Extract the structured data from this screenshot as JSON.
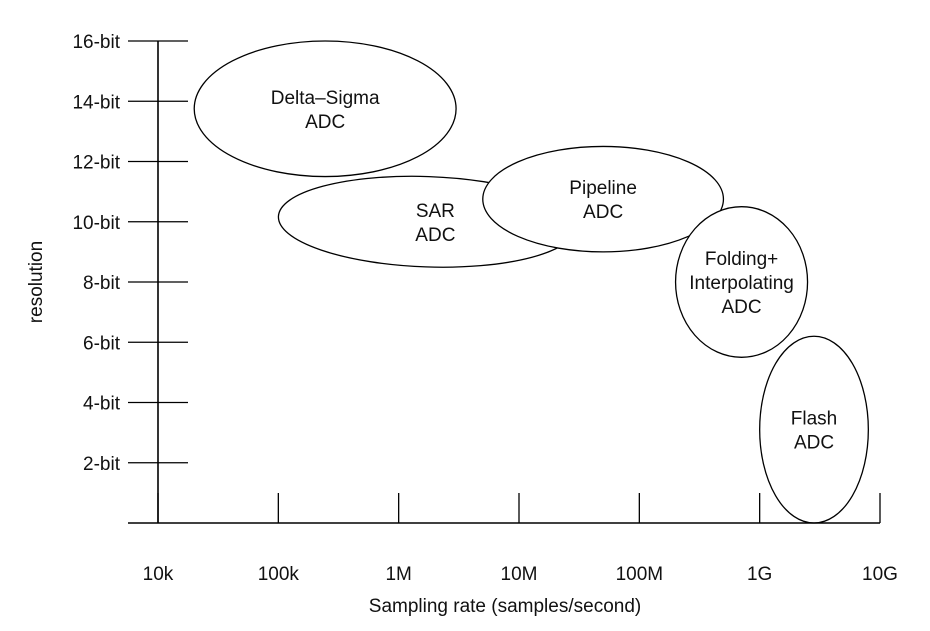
{
  "chart_data": {
    "type": "scatter",
    "title": "",
    "xlabel": "Sampling rate (samples/second)",
    "ylabel": "resolution",
    "x_scale": "log",
    "x_ticks": [
      "10k",
      "100k",
      "1M",
      "10M",
      "100M",
      "1G",
      "10G"
    ],
    "x_tick_values": [
      10000,
      100000,
      1000000,
      10000000,
      100000000,
      1000000000,
      10000000000
    ],
    "y_ticks": [
      "2-bit",
      "4-bit",
      "6-bit",
      "8-bit",
      "10-bit",
      "12-bit",
      "14-bit",
      "16-bit"
    ],
    "y_tick_values": [
      2,
      4,
      6,
      8,
      10,
      12,
      14,
      16
    ],
    "xlim": [
      10000,
      10000000000
    ],
    "ylim": [
      0,
      16
    ],
    "grid": false,
    "regions": [
      {
        "name": "Delta-Sigma ADC",
        "lines": [
          "Delta–Sigma",
          "ADC"
        ],
        "x_range": [
          20000,
          3000000
        ],
        "y_range": [
          11.5,
          16
        ]
      },
      {
        "name": "SAR ADC",
        "lines": [
          "SAR",
          "ADC"
        ],
        "x_range": [
          100000,
          30000000
        ],
        "y_range": [
          8.5,
          11.5
        ]
      },
      {
        "name": "Pipeline ADC",
        "lines": [
          "Pipeline",
          "ADC"
        ],
        "x_range": [
          5000000,
          500000000
        ],
        "y_range": [
          9,
          12.5
        ]
      },
      {
        "name": "Folding+ Interpolating ADC",
        "lines": [
          "Folding+",
          "Interpolating",
          "ADC"
        ],
        "x_range": [
          200000000,
          2500000000
        ],
        "y_range": [
          5.5,
          10.5
        ]
      },
      {
        "name": "Flash ADC",
        "lines": [
          "Flash",
          "ADC"
        ],
        "x_range": [
          1000000000,
          8000000000
        ],
        "y_range": [
          0,
          6.2
        ]
      }
    ]
  }
}
